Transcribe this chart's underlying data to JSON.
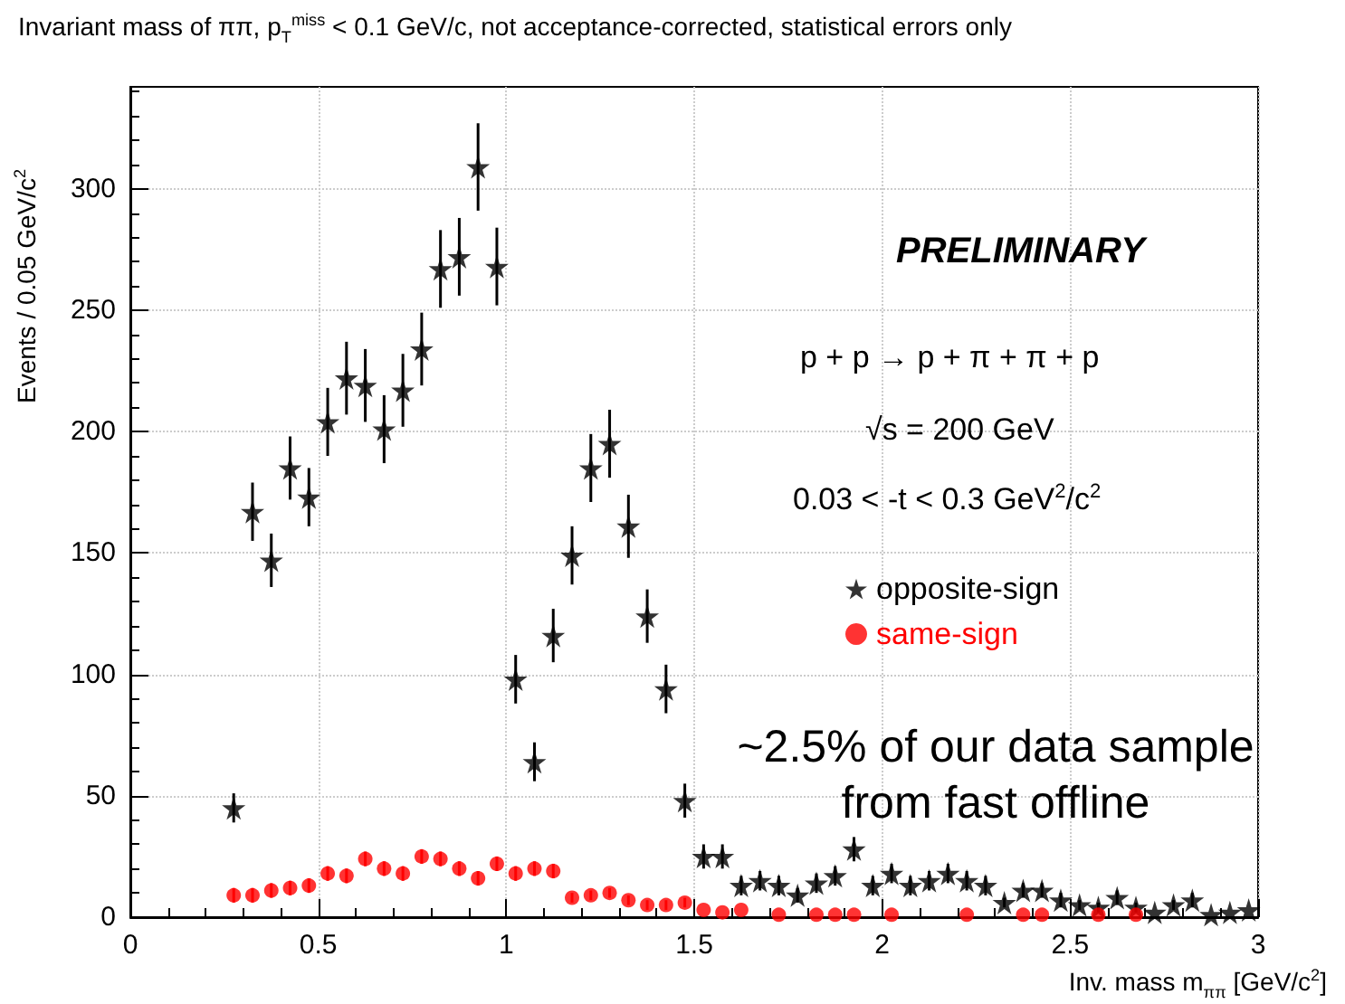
{
  "chart_data": {
    "type": "scatter",
    "title": "Invariant mass of ππ,  p$_{T}$$^{miss}$ < 0.1 GeV/c,  not acceptance-corrected,  statistical errors only",
    "xlabel": "Inv. mass  m$_{ππ}$ [GeV/c$^{2}$]",
    "ylabel": "Events / 0.05 GeV/c$^{2}$",
    "annotations": [
      "PRELIMINARY",
      "p + p → p + π + π + p",
      "√s = 200 GeV",
      "0.03 < -t < 0.3 GeV$^{2}$/c$^{2}$",
      "~2.5% of our data sample from fast offline"
    ],
    "xlim": [
      0,
      3
    ],
    "xticks": [
      0,
      0.5,
      1,
      1.5,
      2,
      2.5,
      3
    ],
    "ylim": [
      0,
      342
    ],
    "yticks": [
      0,
      50,
      100,
      150,
      200,
      250,
      300
    ],
    "grid": true,
    "legend": "right",
    "series": [
      {
        "name": "opposite-sign",
        "color": "#000000",
        "marker": "star",
        "x": [
          0.275,
          0.325,
          0.375,
          0.425,
          0.475,
          0.525,
          0.575,
          0.625,
          0.675,
          0.725,
          0.775,
          0.825,
          0.875,
          0.925,
          0.975,
          1.025,
          1.075,
          1.125,
          1.175,
          1.225,
          1.275,
          1.325,
          1.375,
          1.425,
          1.475,
          1.525,
          1.575,
          1.625,
          1.675,
          1.725,
          1.775,
          1.825,
          1.875,
          1.925,
          1.975,
          2.025,
          2.075,
          2.125,
          2.175,
          2.225,
          2.275,
          2.325,
          2.375,
          2.425,
          2.475,
          2.525,
          2.575,
          2.625,
          2.675,
          2.725,
          2.775,
          2.825,
          2.875,
          2.925,
          2.975
        ],
        "values": [
          45,
          167,
          147,
          185,
          173,
          204,
          222,
          219,
          201,
          217,
          234,
          267,
          272,
          309,
          268,
          98,
          64,
          116,
          149,
          185,
          195,
          161,
          124,
          94,
          48,
          25,
          25,
          13,
          15,
          13,
          9,
          14,
          17,
          28,
          13,
          18,
          13,
          15,
          18,
          15,
          13,
          6,
          11,
          11,
          7,
          5,
          4,
          8,
          4,
          2,
          5,
          7,
          1,
          2,
          3
        ],
        "errors": [
          6,
          12,
          11,
          13,
          12,
          14,
          15,
          15,
          14,
          15,
          15,
          16,
          16,
          18,
          16,
          10,
          8,
          11,
          12,
          14,
          14,
          13,
          11,
          10,
          7,
          5,
          5,
          4,
          4,
          4,
          3,
          4,
          4,
          5,
          4,
          4,
          4,
          4,
          4,
          4,
          4,
          2,
          3,
          3,
          3,
          2,
          2,
          3,
          2,
          null,
          2,
          3,
          null,
          null,
          null
        ]
      },
      {
        "name": "same-sign",
        "color": "#ff0000",
        "marker": "circle",
        "x": [
          0.275,
          0.325,
          0.375,
          0.425,
          0.475,
          0.525,
          0.575,
          0.625,
          0.675,
          0.725,
          0.775,
          0.825,
          0.875,
          0.925,
          0.975,
          1.025,
          1.075,
          1.125,
          1.175,
          1.225,
          1.275,
          1.325,
          1.375,
          1.425,
          1.475,
          1.525,
          1.575,
          1.625,
          1.725,
          1.825,
          1.875,
          1.925,
          2.025,
          2.225,
          2.375,
          2.425,
          2.575,
          2.675
        ],
        "values": [
          9,
          9,
          11,
          12,
          13,
          18,
          17,
          24,
          20,
          18,
          25,
          24,
          20,
          16,
          22,
          18,
          20,
          19,
          8,
          9,
          10,
          7,
          5,
          5,
          6,
          3,
          2,
          3,
          1,
          1,
          1,
          1,
          1,
          1,
          1,
          1,
          1,
          1
        ],
        "errors": [
          3,
          3,
          3,
          3,
          3,
          3,
          3,
          3,
          3,
          3,
          3,
          3,
          3,
          3,
          3,
          3,
          3,
          3,
          2,
          2,
          2,
          2,
          2,
          2,
          2,
          null,
          null,
          null,
          null,
          null,
          null,
          null,
          null,
          null,
          null,
          null,
          null,
          null
        ]
      }
    ]
  }
}
